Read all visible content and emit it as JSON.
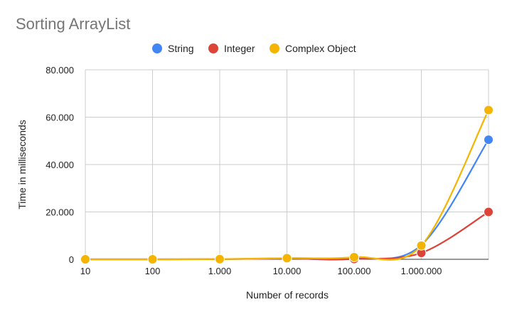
{
  "chart_data": {
    "type": "line",
    "title": "Sorting ArrayList",
    "xlabel": "Number of records",
    "ylabel": "Time in milliseconds",
    "categories": [
      "10",
      "100",
      "1.000",
      "10.000",
      "100.000",
      "1.000.000",
      ""
    ],
    "ylim": [
      0,
      80000
    ],
    "yticks": [
      0,
      20000,
      40000,
      60000,
      80000
    ],
    "ytick_labels": [
      "0",
      "20.000",
      "40.000",
      "60.000",
      "80.000"
    ],
    "grid": true,
    "legend_position": "top",
    "series": [
      {
        "name": "String",
        "color": "#4285F4",
        "values": [
          1,
          5,
          50,
          400,
          200,
          6000,
          50500
        ]
      },
      {
        "name": "Integer",
        "color": "#DB4437",
        "values": [
          1,
          5,
          50,
          300,
          150,
          2700,
          20000
        ]
      },
      {
        "name": "Complex Object",
        "color": "#F4B400",
        "values": [
          1,
          8,
          80,
          500,
          900,
          5800,
          63000
        ]
      }
    ]
  }
}
